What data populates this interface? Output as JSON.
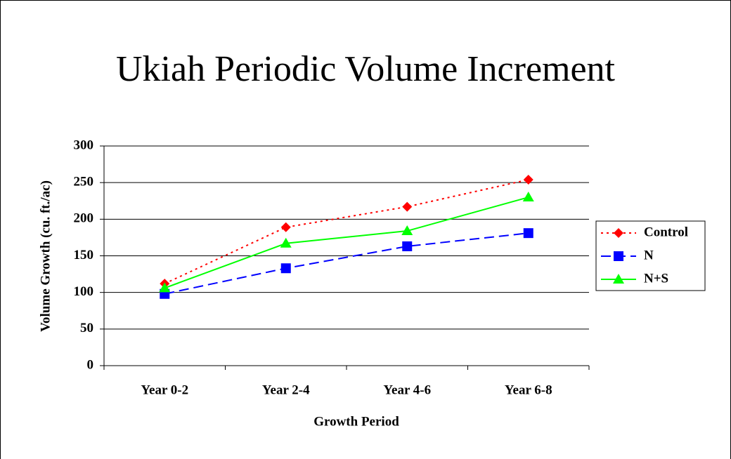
{
  "chart_data": {
    "type": "line",
    "title": "Ukiah Periodic Volume Increment",
    "xlabel": "Growth Period",
    "ylabel": "Volume Growth (cu. ft./ac)",
    "categories": [
      "Year 0-2",
      "Year 2-4",
      "Year 4-6",
      "Year 6-8"
    ],
    "series": [
      {
        "name": "Control",
        "color": "#ff0000",
        "marker": "diamond",
        "line_style": "dotted",
        "values": [
          112,
          189,
          217,
          254
        ]
      },
      {
        "name": "N",
        "color": "#0000ff",
        "marker": "square",
        "line_style": "dashed",
        "values": [
          98,
          133,
          163,
          181
        ]
      },
      {
        "name": "N+S",
        "color": "#00ff00",
        "marker": "triangle",
        "line_style": "solid",
        "values": [
          106,
          167,
          184,
          230
        ]
      }
    ],
    "ylim": [
      0,
      300
    ],
    "yticks": [
      0,
      50,
      100,
      150,
      200,
      250,
      300
    ],
    "grid": true,
    "legend": "right"
  }
}
